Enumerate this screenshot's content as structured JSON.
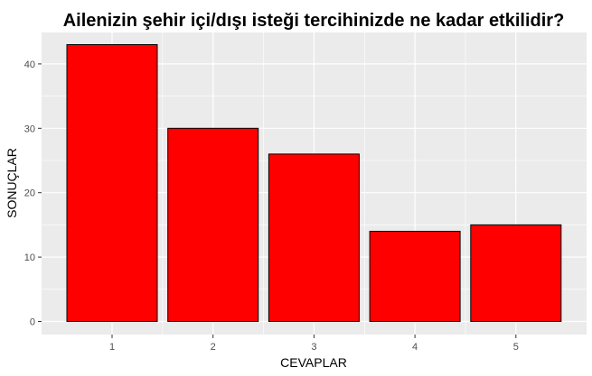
{
  "chart_data": {
    "type": "bar",
    "title": "Ailenizin şehir içi/dışı isteği tercihinizde ne kadar etkilidir?",
    "xlabel": "CEVAPLAR",
    "ylabel": "SONUÇLAR",
    "categories": [
      "1",
      "2",
      "3",
      "4",
      "5"
    ],
    "values": [
      43,
      30,
      26,
      14,
      15
    ],
    "ylim": [
      0,
      45
    ],
    "yticks": [
      0,
      10,
      20,
      30,
      40
    ],
    "grid": true,
    "legend": "none",
    "colors": {
      "bar_fill": "#ff0000",
      "bar_stroke": "#000000",
      "panel_background": "#ebebeb",
      "gridline": "#ffffff"
    }
  }
}
